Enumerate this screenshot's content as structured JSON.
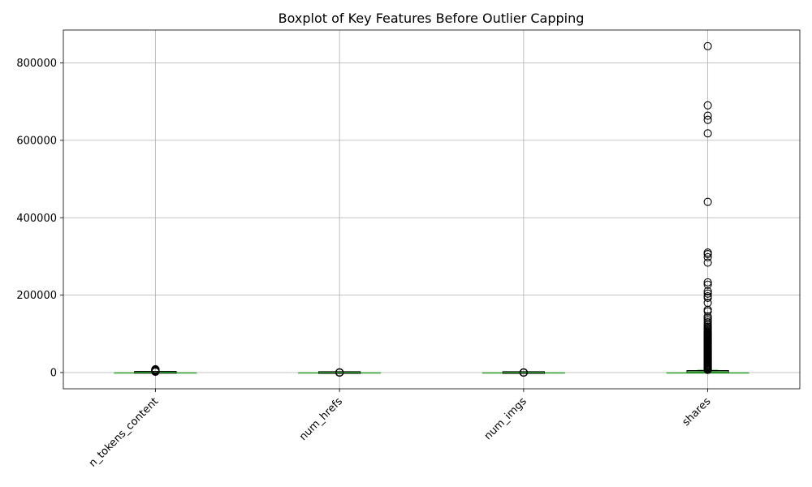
{
  "chart_data": {
    "type": "box",
    "title": "Boxplot of Key Features Before Outlier Capping",
    "xlabel": "",
    "ylabel": "",
    "categories": [
      "n_tokens_content",
      "num_hrefs",
      "num_imgs",
      "shares"
    ],
    "ylim": [
      -42000,
      885000
    ],
    "yticks": [
      0,
      200000,
      400000,
      600000,
      800000
    ],
    "ytick_labels": [
      "0",
      "200000",
      "400000",
      "600000",
      "800000"
    ],
    "grid": true,
    "xtick_rotation": 45,
    "colors": {
      "box": "#000000",
      "median": "#2ca02c",
      "whisker": "#2ca02c",
      "flier": "#000000",
      "grid": "#b0b0b0"
    },
    "boxes": [
      {
        "name": "n_tokens_content",
        "q1": 246,
        "median": 409,
        "q3": 716,
        "whislo": 0,
        "whishi": 1420,
        "fliers": [
          2000,
          2600,
          3200,
          3800,
          4300,
          4900,
          5500,
          6100,
          6700,
          7300,
          8000,
          8474
        ]
      },
      {
        "name": "num_hrefs",
        "q1": 4,
        "median": 8,
        "q3": 14,
        "whislo": 0,
        "whishi": 29,
        "fliers": [
          35,
          60,
          90,
          130,
          180,
          250,
          304
        ]
      },
      {
        "name": "num_imgs",
        "q1": 1,
        "median": 1,
        "q3": 4,
        "whislo": 0,
        "whishi": 8,
        "fliers": [
          12,
          30,
          50,
          70,
          90,
          111,
          128
        ]
      },
      {
        "name": "shares",
        "q1": 946,
        "median": 1400,
        "q3": 2800,
        "whislo": 1,
        "whishi": 5581,
        "fliers": [
          7000,
          9000,
          11000,
          13000,
          15000,
          17000,
          19000,
          21000,
          23000,
          25000,
          27000,
          29000,
          31000,
          33000,
          35000,
          37000,
          39000,
          41000,
          43000,
          45000,
          47000,
          49000,
          51000,
          53000,
          55000,
          57000,
          59000,
          61000,
          63000,
          65000,
          67000,
          69000,
          71000,
          73000,
          75000,
          77000,
          79000,
          81000,
          83000,
          85000,
          87000,
          89000,
          91000,
          93000,
          95000,
          97000,
          99000,
          101000,
          103000,
          106000,
          109000,
          112000,
          115000,
          118000,
          122000,
          126000,
          130000,
          135000,
          140000,
          145000,
          158000,
          162000,
          180000,
          193000,
          197000,
          204000,
          210000,
          227000,
          233000,
          284000,
          298000,
          306000,
          310000,
          441000,
          617900,
          652900,
          663600,
          690400,
          843300
        ]
      }
    ]
  }
}
